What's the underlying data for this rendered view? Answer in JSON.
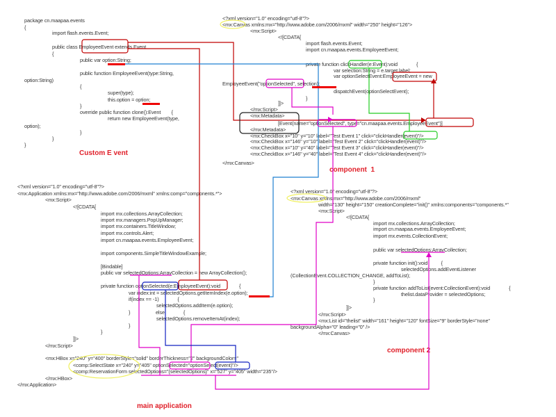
{
  "colors": {
    "event_link": "#c00000",
    "option_link": "#1e7fd0",
    "click_link": "#22cc22",
    "selected_link": "#e000c8",
    "select_fn_link": "#1020c0",
    "highlight": "#f0f060",
    "underline": "#ee0000"
  },
  "custom_event": {
    "caption": "Custom E vent",
    "lines": [
      "package cn.maapaa.events",
      "{",
      "import flash.events.Event;",
      "public class EmployeeEvent extends Event",
      "{",
      "public var option:String;",
      "public function EmployeeEvent(type:String,",
      "option:String)",
      "{",
      "super(type);",
      "this.option = option;",
      "}",
      "override public function clone():Event        {",
      "return new EmployeeEvent(type,",
      "option);",
      "}",
      "}",
      "}"
    ]
  },
  "component1": {
    "caption": "component  1",
    "lines": [
      "<?xml version=\"1.0\" encoding=\"utf-8\"?>",
      "<mx:Canvas xmlns:mx=\"http://www.adobe.com/2006/mxml\" width=\"250\" height=\"126\">",
      "<mx:Script>",
      "<![CDATA[",
      "import flash.events.Event;",
      "import cn.maapaa.events.EmployeeEvent;",
      "private function clickHandler(e:Event):void              {",
      "var selection:String = e.target.label;",
      "var optionSelectEvent:EmployeeEvent = new",
      "EmployeeEvent(\"optionSelected\", selection);",
      "dispatchEvent(optionSelectEvent);",
      "}",
      "]]>",
      "</mx:Script>",
      "<mx:Metadata>",
      "[Event(name=\"optionSelected\", type=\"cn.maapaa.events.EmployeeEvent\")]",
      "</mx:Metadata>",
      "<mx:CheckBox x=\"10\" y=\"10\" label=\"Test Event 1\" click=\"clickHandler(event)\"/>",
      "<mx:CheckBox x=\"146\" y=\"10\" label=\"Test Event 2\" click=\"clickHandler(event)\"/>",
      "<mx:CheckBox x=\"10\" y=\"40\" label=\"Test Event 3\" click=\"clickHandler(event)\"/>",
      "<mx:CheckBox x=\"146\" y=\"40\" label=\"Test Event 4\" click=\"clickHandler(event)\"/>",
      "</mx:Canvas>"
    ]
  },
  "main_application": {
    "caption": "main application",
    "lines": [
      "<?xml version=\"1.0\" encoding=\"utf-8\"?>",
      "<mx:Application xmlns:mx=\"http://www.adobe.com/2006/mxml\" xmlns:comp=\"components.*\">",
      "<mx:Script>",
      "<![CDATA[",
      "import mx.collections.ArrayCollection;",
      "import mx.managers.PopUpManager;",
      "import mx.containers.TitleWindow;",
      "import mx.controls.Alert;",
      "import cn.maapaa.events.EmployeeEvent;",
      "import components.SimpleTitleWindowExample;",
      "[Bindable]",
      "public var selectedOptions:ArrayCollection = new ArrayCollection();",
      "private function optionSelected(e:EmployeeEvent):void              {",
      "var index:int = selectedOptions.getItemIndex(e.option);",
      "if(index == -1)              {",
      "selectedOptions.addItem(e.option);",
      "}                   else              {",
      "selectedOptions.removeItemAt(index);",
      "}",
      "}",
      "]]>",
      "</mx:Script>",
      "<mx:HBox x=\"240\" y=\"400\" borderStyle=\"solid\" borderThickness=\"2\" backgroundColor=\"",
      "<comp:SelectState x=\"240\" y=\"405\" optionSelected=\"optionSelect(event)\"/>",
      "<comp:ReservationForm selectedOptions=\"{selectedOptions}\" x=\"527\" y=\"405\" width=\"235\"/>",
      "</mx:HBox>",
      "</mx:Application>"
    ]
  },
  "component2": {
    "caption": "component 2",
    "lines": [
      "<?xml version=\"1.0\" encoding=\"utf-8\"?>",
      "<mx:Canvas xmlns:mx=\"http://www.adobe.com/2006/mxml\"",
      "width=\"130\" height=\"150\" creationComplete=\"init()\" xmlns:components=\"components.*\"",
      "<mx:Script>",
      "<![CDATA[",
      "import mx.collections.ArrayCollection;",
      "import cn.maapaa.events.EmployeeEvent;",
      "import mx.events.CollectionEvent;",
      "public var selectedOptions:ArrayCollection;",
      "private function init():void          {",
      "selectedOptions.addEventListener",
      "(CollectionEvent.COLLECTION_CHANGE, addToList);",
      "}",
      "private function addToList(event:CollectionEvent):void              {",
      "thelist.dataProvider = selectedOptions;",
      "}",
      "]]>",
      "</mx:Script>",
      "<mx:List id=\"thelist\" width=\"161\" height=\"120\" fontSize=\"9\" borderStyle=\"none\"",
      "backgroundAlpha=\"0\" leading=\"0\" />",
      "</mx:Canvas>"
    ]
  }
}
